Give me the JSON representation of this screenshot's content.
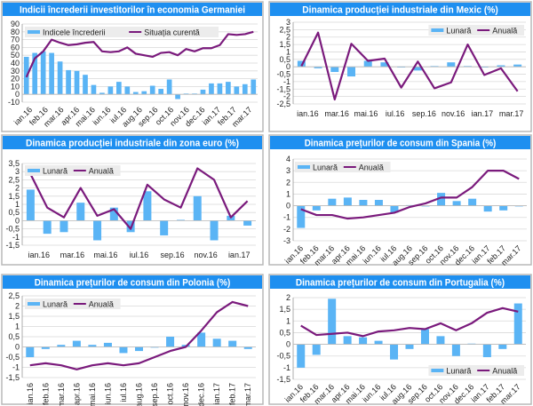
{
  "colors": {
    "bar": "#5ab4f5",
    "line": "#7a1a7c",
    "title_bg": "#1e8ff0",
    "grid": "#d9d9d9"
  },
  "chart_data": [
    {
      "type": "bar+line",
      "title": "Indicii încrederii investitorilor în economia Germaniei",
      "legend": [
        "Indicele încrederii",
        "Situația curentă"
      ],
      "legend_position": "top-left",
      "ylim": [
        -10,
        90
      ],
      "yticks": [
        "-10",
        "0",
        "10",
        "20",
        "30",
        "40",
        "50",
        "60",
        "70",
        "80",
        "90"
      ],
      "x_tick_labels": [
        "ian.16",
        "feb.16",
        "mar.16",
        "apr.16",
        "mai.16",
        "iun.16",
        "iul.16",
        "aug.16",
        "sep.16",
        "oct.16",
        "nov.16",
        "dec.16",
        "ian.17",
        "feb.17",
        "mar.17"
      ],
      "series": [
        {
          "name": "Indicele încrederii",
          "kind": "bar",
          "values": [
            48,
            53,
            55,
            53,
            42,
            31,
            30,
            25,
            12,
            2,
            10,
            16,
            10,
            3,
            4,
            11,
            7,
            19,
            -6,
            1,
            1,
            6,
            14,
            14,
            16,
            10,
            13,
            19
          ]
        },
        {
          "name": "Situația curentă",
          "kind": "line",
          "values": [
            22,
            46,
            55,
            70,
            66,
            63,
            64,
            66,
            67,
            55,
            54,
            55,
            60,
            52,
            50,
            48,
            53,
            54,
            50,
            58,
            55,
            59,
            59,
            63,
            77,
            76,
            77,
            80
          ]
        }
      ]
    },
    {
      "type": "bar+line",
      "title": "Dinamica producției industriale din Mexic (%)",
      "legend": [
        "Lunară",
        "Anuală"
      ],
      "legend_position": "top-right",
      "ylim": [
        -2.5,
        3
      ],
      "yticks": [
        "-2,5",
        "-2",
        "-1,5",
        "-1",
        "-0,5",
        "0",
        "0,5",
        "1",
        "1,5",
        "2",
        "2,5",
        "3"
      ],
      "x_tick_labels": [
        "ian.16",
        "mar.16",
        "mai.16",
        "iul.16",
        "sep.16",
        "nov.16",
        "ian.17",
        "mar.17"
      ],
      "series": [
        {
          "name": "Lunară",
          "kind": "bar",
          "values": [
            0.4,
            -0.1,
            -0.35,
            -0.65,
            0.4,
            0.3,
            0,
            -0.25,
            0.05,
            0.3,
            0.05,
            -0.05,
            0.1,
            0.15
          ]
        },
        {
          "name": "Anuală",
          "kind": "line",
          "values": [
            0.05,
            2.3,
            -2.2,
            1.55,
            0.4,
            0.55,
            -1.4,
            0.35,
            -1.45,
            -1.05,
            1.5,
            -0.55,
            -0.1,
            -1.65
          ]
        }
      ]
    },
    {
      "type": "bar+line",
      "title": "Dinamica producției industriale din zona euro (%)",
      "legend": [
        "Lunară",
        "Anuală"
      ],
      "legend_position": "top-left",
      "ylim": [
        -1.5,
        3.5
      ],
      "yticks": [
        "-1,5",
        "-1",
        "-0,5",
        "0",
        "0,5",
        "1",
        "1,5",
        "2",
        "2,5",
        "3",
        "3,5"
      ],
      "x_tick_labels": [
        "ian.16",
        "mar.16",
        "mai.16",
        "iul.16",
        "sep.16",
        "nov.16",
        "ian.17"
      ],
      "series": [
        {
          "name": "Lunară",
          "kind": "bar",
          "values": [
            1.9,
            -0.8,
            -0.7,
            1.1,
            -1.2,
            0.8,
            -0.7,
            1.8,
            -0.9,
            0.05,
            1.5,
            -1.2,
            0.3,
            -0.3
          ]
        },
        {
          "name": "Anuală",
          "kind": "line",
          "values": [
            2.85,
            0.8,
            0.2,
            2.0,
            0.3,
            0.7,
            -0.5,
            2.2,
            1.3,
            0.8,
            3.2,
            2.5,
            0.2,
            1.2
          ]
        }
      ]
    },
    {
      "type": "bar+line",
      "title": "Dinamica prețurilor de consum din Spania (%)",
      "legend": [
        "Lunară",
        "Anuală"
      ],
      "legend_position": "top-left",
      "ylim": [
        -3,
        4
      ],
      "yticks": [
        "-3",
        "-2",
        "-1",
        "0",
        "1",
        "2",
        "3",
        "4"
      ],
      "x_tick_labels": [
        "ian.16",
        "feb.16",
        "mar.16",
        "apr.16",
        "mai.16",
        "iun.16",
        "iul.16",
        "aug.16",
        "sep.16",
        "oct.16",
        "nov.16",
        "dec.16",
        "ian.17",
        "feb.17",
        "mar.17"
      ],
      "series": [
        {
          "name": "Lunară",
          "kind": "bar",
          "values": [
            -1.9,
            -0.4,
            0.6,
            0.7,
            0.5,
            0.5,
            -0.6,
            0.05,
            0,
            1.1,
            0.4,
            0.6,
            -0.5,
            -0.4,
            0
          ]
        },
        {
          "name": "Anuală",
          "kind": "line",
          "values": [
            -0.3,
            -0.8,
            -0.8,
            -1.1,
            -1.0,
            -0.8,
            -0.6,
            -0.1,
            0.2,
            0.7,
            0.7,
            1.6,
            3.0,
            3.0,
            2.3
          ]
        }
      ]
    },
    {
      "type": "bar+line",
      "title": "Dinamica prețurilor de consum din Polonia (%)",
      "legend": [
        "Lunară",
        "Anuală"
      ],
      "legend_position": "top-left",
      "ylim": [
        -1.5,
        2.5
      ],
      "yticks": [
        "-1,5",
        "-1",
        "-0,5",
        "0",
        "0,5",
        "1",
        "1,5",
        "2",
        "2,5"
      ],
      "x_tick_labels": [
        "ian.16",
        "feb.16",
        "mar.16",
        "apr.16",
        "mai.16",
        "iun.16",
        "iul.16",
        "aug.16",
        "sep.16",
        "oct.16",
        "nov.16",
        "dec.16",
        "ian.17",
        "feb.17",
        "mar.17"
      ],
      "series": [
        {
          "name": "Lunară",
          "kind": "bar",
          "values": [
            -0.5,
            -0.1,
            0.1,
            0.3,
            0.1,
            0.2,
            -0.3,
            -0.2,
            0,
            0.5,
            0.1,
            0.7,
            0.4,
            0.3,
            -0.1
          ]
        },
        {
          "name": "Anuală",
          "kind": "line",
          "values": [
            -0.9,
            -0.8,
            -0.9,
            -1.1,
            -0.9,
            -0.8,
            -0.9,
            -0.8,
            -0.5,
            -0.2,
            0,
            0.8,
            1.7,
            2.2,
            2.0
          ]
        }
      ]
    },
    {
      "type": "bar+line",
      "title": "Dinamica prețurilor de consum din Portugalia (%)",
      "legend": [
        "Lunară",
        "Anuală"
      ],
      "legend_position": "bottom-right",
      "ylim": [
        -1.5,
        2
      ],
      "yticks": [
        "-1,5",
        "-1",
        "-0,5",
        "0",
        "0,5",
        "1",
        "1,5",
        "2"
      ],
      "x_tick_labels": [
        "ian.16",
        "feb.16",
        "mar.16",
        "apr.16",
        "mai.16",
        "iun.16",
        "iul.16",
        "aug.16",
        "sep.16",
        "oct.16",
        "nov.16",
        "dec.16",
        "ian.17",
        "feb.17",
        "mar.17"
      ],
      "series": [
        {
          "name": "Lunară",
          "kind": "bar",
          "values": [
            -1.0,
            -0.45,
            1.95,
            0.35,
            0.3,
            0.15,
            -0.65,
            -0.2,
            0.65,
            0.35,
            -0.5,
            0.03,
            -0.55,
            -0.2,
            1.75
          ]
        },
        {
          "name": "Anuală",
          "kind": "line",
          "values": [
            0.8,
            0.4,
            0.45,
            0.5,
            0.35,
            0.55,
            0.6,
            0.7,
            0.65,
            0.9,
            0.6,
            0.9,
            1.35,
            1.55,
            1.4
          ]
        }
      ]
    }
  ]
}
